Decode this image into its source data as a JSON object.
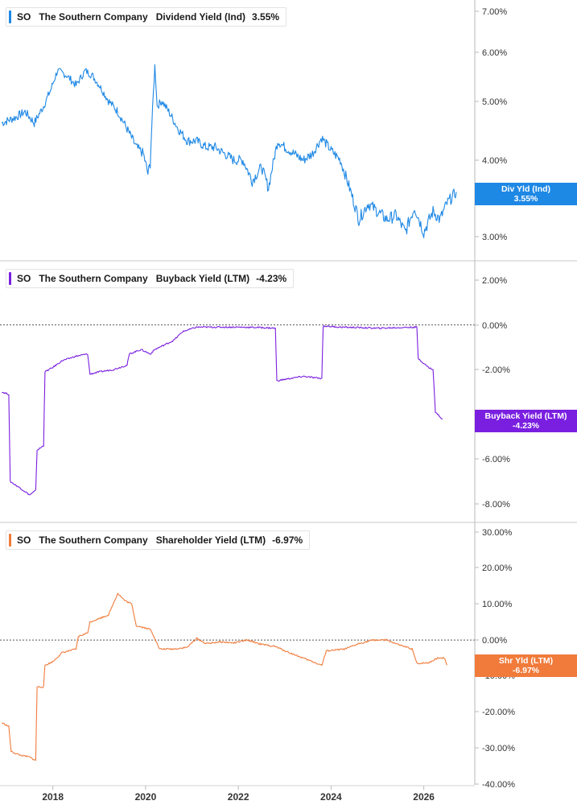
{
  "chart_data": [
    {
      "type": "line",
      "ticker": "SO",
      "company": "The Southern Company",
      "metric": "Dividend Yield (Ind)",
      "current_value": "3.55%",
      "tag_label": "Div Yld (Ind)",
      "color": "#1e88e5",
      "scale": "log",
      "ylim": [
        2.85,
        7.2
      ],
      "yticks": [
        "7.00%",
        "6.00%",
        "5.00%",
        "4.00%",
        "3.00%"
      ],
      "ytick_values": [
        7,
        6,
        5,
        4,
        3
      ],
      "series": [
        {
          "values": [
            [
              2016.9,
              4.6
            ],
            [
              2017.2,
              4.7
            ],
            [
              2017.4,
              4.8
            ],
            [
              2017.6,
              4.6
            ],
            [
              2017.8,
              4.9
            ],
            [
              2017.95,
              5.2
            ],
            [
              2018.1,
              5.6
            ],
            [
              2018.3,
              5.5
            ],
            [
              2018.5,
              5.3
            ],
            [
              2018.7,
              5.6
            ],
            [
              2018.85,
              5.5
            ],
            [
              2019.0,
              5.3
            ],
            [
              2019.2,
              5.0
            ],
            [
              2019.4,
              4.8
            ],
            [
              2019.6,
              4.5
            ],
            [
              2019.8,
              4.2
            ],
            [
              2019.95,
              4.1
            ],
            [
              2020.05,
              3.8
            ],
            [
              2020.1,
              3.95
            ],
            [
              2020.2,
              5.7
            ],
            [
              2020.25,
              4.9
            ],
            [
              2020.35,
              5.0
            ],
            [
              2020.5,
              4.8
            ],
            [
              2020.7,
              4.5
            ],
            [
              2020.9,
              4.3
            ],
            [
              2021.1,
              4.3
            ],
            [
              2021.3,
              4.2
            ],
            [
              2021.5,
              4.2
            ],
            [
              2021.7,
              4.1
            ],
            [
              2021.9,
              4.0
            ],
            [
              2022.1,
              4.0
            ],
            [
              2022.3,
              3.7
            ],
            [
              2022.5,
              3.9
            ],
            [
              2022.65,
              3.6
            ],
            [
              2022.85,
              4.3
            ],
            [
              2023.0,
              4.2
            ],
            [
              2023.2,
              4.1
            ],
            [
              2023.4,
              4.0
            ],
            [
              2023.6,
              4.1
            ],
            [
              2023.8,
              4.35
            ],
            [
              2024.0,
              4.15
            ],
            [
              2024.2,
              4.0
            ],
            [
              2024.4,
              3.6
            ],
            [
              2024.6,
              3.2
            ],
            [
              2024.8,
              3.4
            ],
            [
              2025.0,
              3.3
            ],
            [
              2025.2,
              3.2
            ],
            [
              2025.4,
              3.25
            ],
            [
              2025.6,
              3.05
            ],
            [
              2025.8,
              3.35
            ],
            [
              2026.0,
              3.05
            ],
            [
              2026.2,
              3.3
            ],
            [
              2026.35,
              3.2
            ],
            [
              2026.5,
              3.4
            ],
            [
              2026.7,
              3.55
            ]
          ]
        }
      ]
    },
    {
      "type": "line",
      "ticker": "SO",
      "company": "The Southern Company",
      "metric": "Buyback Yield (LTM)",
      "current_value": "-4.23%",
      "tag_label": "Buyback Yield (LTM)",
      "color": "#7a1fe0",
      "ylim": [
        -8.5,
        2.5
      ],
      "yticks": [
        "2.00%",
        "0.00%",
        "-2.00%",
        "-6.00%",
        "-8.00%"
      ],
      "ytick_values": [
        2,
        0,
        -2,
        -6,
        -8
      ],
      "reference_line": 0,
      "series": [
        {
          "values": [
            [
              2016.9,
              -3.0
            ],
            [
              2017.05,
              -3.1
            ],
            [
              2017.08,
              -7.0
            ],
            [
              2017.3,
              -7.3
            ],
            [
              2017.5,
              -7.6
            ],
            [
              2017.63,
              -7.4
            ],
            [
              2017.66,
              -5.6
            ],
            [
              2017.8,
              -5.4
            ],
            [
              2017.83,
              -2.1
            ],
            [
              2018.0,
              -1.9
            ],
            [
              2018.2,
              -1.6
            ],
            [
              2018.5,
              -1.4
            ],
            [
              2018.75,
              -1.3
            ],
            [
              2018.8,
              -2.2
            ],
            [
              2019.0,
              -2.1
            ],
            [
              2019.3,
              -2.0
            ],
            [
              2019.6,
              -1.8
            ],
            [
              2019.65,
              -1.3
            ],
            [
              2019.9,
              -1.1
            ],
            [
              2020.1,
              -1.3
            ],
            [
              2020.2,
              -1.1
            ],
            [
              2020.4,
              -0.9
            ],
            [
              2020.6,
              -0.7
            ],
            [
              2020.8,
              -0.3
            ],
            [
              2021.1,
              -0.1
            ],
            [
              2021.5,
              -0.1
            ],
            [
              2022.0,
              -0.1
            ],
            [
              2022.5,
              -0.12
            ],
            [
              2022.8,
              -0.15
            ],
            [
              2022.83,
              -2.5
            ],
            [
              2023.1,
              -2.4
            ],
            [
              2023.4,
              -2.3
            ],
            [
              2023.8,
              -2.4
            ],
            [
              2023.83,
              -0.05
            ],
            [
              2024.2,
              -0.1
            ],
            [
              2024.6,
              -0.12
            ],
            [
              2025.0,
              -0.15
            ],
            [
              2025.5,
              -0.12
            ],
            [
              2025.85,
              -0.1
            ],
            [
              2025.88,
              -1.5
            ],
            [
              2026.1,
              -1.9
            ],
            [
              2026.2,
              -2.0
            ],
            [
              2026.25,
              -3.9
            ],
            [
              2026.35,
              -4.1
            ],
            [
              2026.4,
              -4.23
            ]
          ]
        }
      ]
    },
    {
      "type": "line",
      "ticker": "SO",
      "company": "The Southern Company",
      "metric": "Shareholder Yield (LTM)",
      "current_value": "-6.97%",
      "tag_label": "Shr Yld (LTM)",
      "color": "#f07b3b",
      "ylim": [
        -40,
        31
      ],
      "yticks": [
        "30.00%",
        "20.00%",
        "10.00%",
        "0.00%",
        "-10.00%",
        "-20.00%",
        "-30.00%",
        "-40.00%"
      ],
      "ytick_values": [
        30,
        20,
        10,
        0,
        -10,
        -20,
        -30,
        -40
      ],
      "reference_line": 0,
      "series": [
        {
          "values": [
            [
              2016.9,
              -23.0
            ],
            [
              2017.05,
              -24.0
            ],
            [
              2017.1,
              -31.0
            ],
            [
              2017.3,
              -32.0
            ],
            [
              2017.5,
              -32.5
            ],
            [
              2017.63,
              -33.5
            ],
            [
              2017.66,
              -13.0
            ],
            [
              2017.8,
              -13.0
            ],
            [
              2017.83,
              -7.0
            ],
            [
              2018.0,
              -6.0
            ],
            [
              2018.2,
              -3.5
            ],
            [
              2018.5,
              -2.5
            ],
            [
              2018.55,
              1.0
            ],
            [
              2018.75,
              2.0
            ],
            [
              2018.8,
              5.0
            ],
            [
              2019.0,
              6.0
            ],
            [
              2019.2,
              7.0
            ],
            [
              2019.4,
              13.0
            ],
            [
              2019.55,
              11.0
            ],
            [
              2019.7,
              10.0
            ],
            [
              2019.8,
              4.0
            ],
            [
              2020.1,
              3.0
            ],
            [
              2020.2,
              0.5
            ],
            [
              2020.3,
              -2.5
            ],
            [
              2020.6,
              -2.5
            ],
            [
              2020.9,
              -2.0
            ],
            [
              2021.1,
              0.5
            ],
            [
              2021.3,
              -1.0
            ],
            [
              2021.6,
              -0.5
            ],
            [
              2021.9,
              -0.8
            ],
            [
              2022.2,
              0.0
            ],
            [
              2022.5,
              -1.2
            ],
            [
              2022.8,
              -1.8
            ],
            [
              2023.1,
              -3.5
            ],
            [
              2023.5,
              -5.5
            ],
            [
              2023.8,
              -7.0
            ],
            [
              2023.9,
              -3.0
            ],
            [
              2024.3,
              -2.5
            ],
            [
              2024.6,
              -1.0
            ],
            [
              2024.9,
              0.0
            ],
            [
              2025.2,
              0.0
            ],
            [
              2025.5,
              -1.5
            ],
            [
              2025.75,
              -2.5
            ],
            [
              2025.85,
              -6.5
            ],
            [
              2026.1,
              -6.3
            ],
            [
              2026.3,
              -5.0
            ],
            [
              2026.45,
              -5.0
            ],
            [
              2026.5,
              -6.97
            ]
          ]
        }
      ]
    }
  ],
  "x_axis": {
    "ticks": [
      "2018",
      "2020",
      "2022",
      "2024",
      "2026"
    ],
    "tick_values": [
      2018,
      2020,
      2022,
      2024,
      2026
    ],
    "range": [
      2016.86,
      2027.1
    ]
  }
}
